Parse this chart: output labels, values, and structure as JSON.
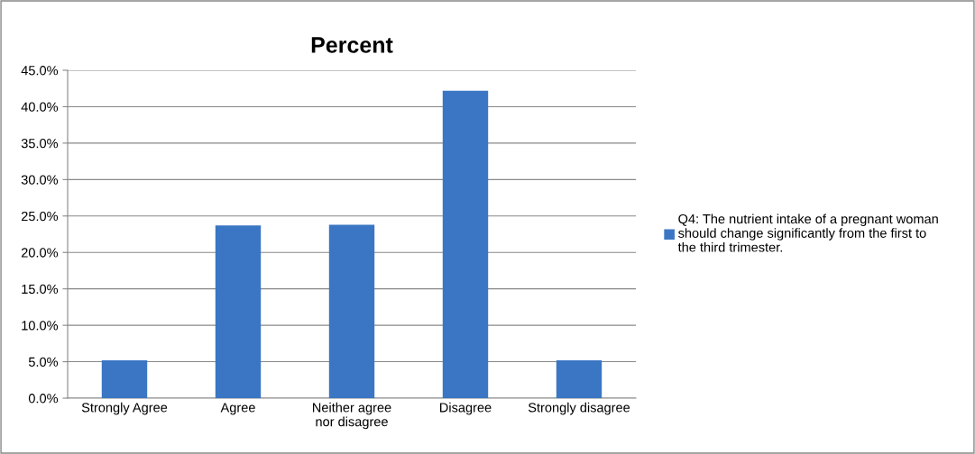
{
  "chart_data": {
    "type": "bar",
    "title": "Percent",
    "categories": [
      "Strongly Agree",
      "Agree",
      "Neither agree\nnor disagree",
      "Disagree",
      "Strongly disagree"
    ],
    "series": [
      {
        "name": "Q4: The nutrient intake of a pregnant woman\nshould change significantly from the first to\nthe third trimester.",
        "color": "#3a76c4",
        "values": [
          5.2,
          23.7,
          23.8,
          42.2,
          5.2
        ]
      }
    ],
    "ylim": [
      0,
      45
    ],
    "yticks": [
      {
        "value": 0,
        "label": "0.0%"
      },
      {
        "value": 5,
        "label": "5.0%"
      },
      {
        "value": 10,
        "label": "10.0%"
      },
      {
        "value": 15,
        "label": "15.0%"
      },
      {
        "value": 20,
        "label": "20.0%"
      },
      {
        "value": 25,
        "label": "25.0%"
      },
      {
        "value": 30,
        "label": "30.0%"
      },
      {
        "value": 35,
        "label": "35.0%"
      },
      {
        "value": 40,
        "label": "40.0%"
      },
      {
        "value": 45,
        "label": "45.0%"
      }
    ],
    "grid": "y",
    "legend": "right"
  }
}
